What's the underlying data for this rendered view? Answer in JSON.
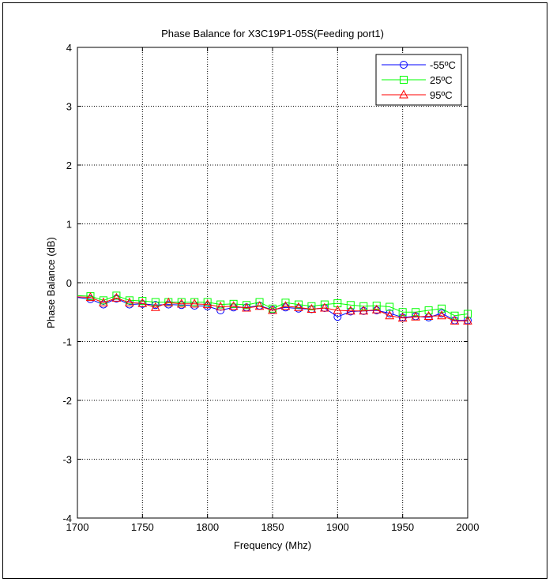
{
  "chart_data": {
    "type": "line",
    "title": "Phase Balance for X3C19P1-05S(Feeding port1)",
    "xlabel": "Frequency (Mhz)",
    "ylabel": "Phase Balance (dB)",
    "xlim": [
      1700,
      2000
    ],
    "ylim": [
      -4,
      4
    ],
    "xticks": [
      1700,
      1750,
      1800,
      1850,
      1900,
      1950,
      2000
    ],
    "yticks": [
      -4,
      -3,
      -2,
      -1,
      0,
      1,
      2,
      3,
      4
    ],
    "grid": true,
    "legend_position": "top-right",
    "x": [
      1700,
      1710,
      1720,
      1730,
      1740,
      1750,
      1760,
      1770,
      1780,
      1790,
      1800,
      1810,
      1820,
      1830,
      1840,
      1850,
      1860,
      1870,
      1880,
      1890,
      1900,
      1910,
      1920,
      1930,
      1940,
      1950,
      1960,
      1970,
      1980,
      1990,
      2000
    ],
    "marker_x": [
      1710,
      1720,
      1730,
      1740,
      1750,
      1760,
      1770,
      1780,
      1790,
      1800,
      1810,
      1820,
      1830,
      1840,
      1850,
      1860,
      1870,
      1880,
      1890,
      1900,
      1910,
      1920,
      1930,
      1940,
      1950,
      1960,
      1970,
      1980,
      1990,
      2000
    ],
    "series": [
      {
        "name": "-55ºC",
        "color": "#0000ff",
        "marker": "circle",
        "values": [
          -0.25,
          -0.28,
          -0.37,
          -0.27,
          -0.37,
          -0.36,
          -0.38,
          -0.37,
          -0.38,
          -0.39,
          -0.4,
          -0.47,
          -0.42,
          -0.42,
          -0.39,
          -0.46,
          -0.42,
          -0.44,
          -0.45,
          -0.43,
          -0.58,
          -0.49,
          -0.48,
          -0.47,
          -0.52,
          -0.59,
          -0.57,
          -0.59,
          -0.52,
          -0.64,
          -0.64
        ]
      },
      {
        "name": "25ºC",
        "color": "#00ff00",
        "marker": "square",
        "values": [
          -0.22,
          -0.23,
          -0.3,
          -0.22,
          -0.3,
          -0.31,
          -0.33,
          -0.33,
          -0.33,
          -0.33,
          -0.33,
          -0.37,
          -0.36,
          -0.38,
          -0.33,
          -0.44,
          -0.34,
          -0.37,
          -0.4,
          -0.37,
          -0.35,
          -0.38,
          -0.4,
          -0.39,
          -0.41,
          -0.5,
          -0.5,
          -0.47,
          -0.44,
          -0.56,
          -0.53
        ]
      },
      {
        "name": "95ºC",
        "color": "#ff0000",
        "marker": "triangle",
        "values": [
          -0.24,
          -0.25,
          -0.34,
          -0.26,
          -0.34,
          -0.35,
          -0.42,
          -0.34,
          -0.36,
          -0.36,
          -0.37,
          -0.41,
          -0.4,
          -0.43,
          -0.4,
          -0.47,
          -0.4,
          -0.42,
          -0.45,
          -0.43,
          -0.47,
          -0.48,
          -0.48,
          -0.46,
          -0.56,
          -0.6,
          -0.58,
          -0.57,
          -0.56,
          -0.65,
          -0.65
        ]
      }
    ]
  }
}
